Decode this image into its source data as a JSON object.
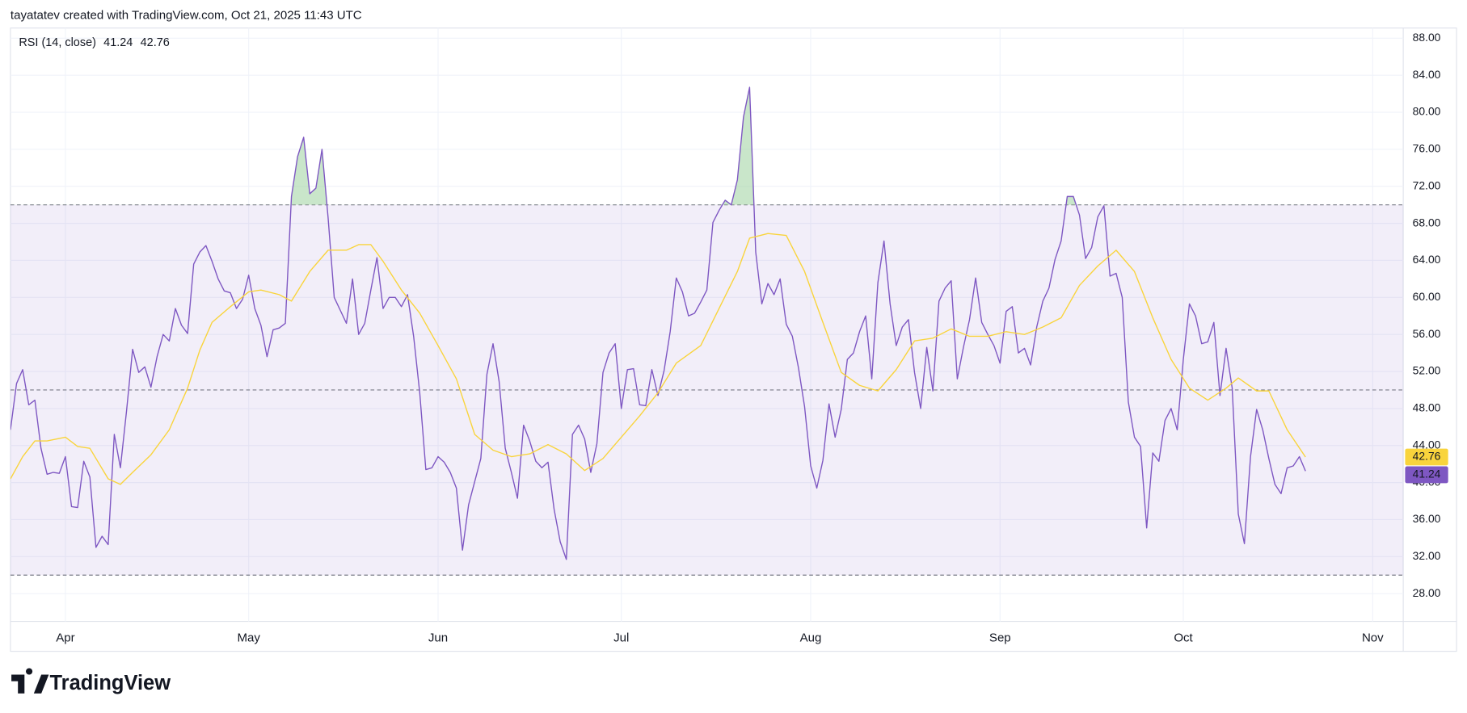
{
  "header": {
    "attribution": "tayatatev created with TradingView.com, Oct 21, 2025 11:43 UTC"
  },
  "footer": {
    "brand": "TradingView"
  },
  "chart_data": {
    "type": "line",
    "legend_title": "RSI (14, close)",
    "xlim": [
      0,
      228
    ],
    "xticks": [
      {
        "value": 9,
        "label": "Apr"
      },
      {
        "value": 39,
        "label": "May"
      },
      {
        "value": 70,
        "label": "Jun"
      },
      {
        "value": 100,
        "label": "Jul"
      },
      {
        "value": 131,
        "label": "Aug"
      },
      {
        "value": 162,
        "label": "Sep"
      },
      {
        "value": 192,
        "label": "Oct"
      },
      {
        "value": 223,
        "label": "Nov"
      }
    ],
    "ylim": [
      25.0,
      89.1
    ],
    "yticks": [
      {
        "value": 28,
        "label": "28.00"
      },
      {
        "value": 32,
        "label": "32.00"
      },
      {
        "value": 36,
        "label": "36.00"
      },
      {
        "value": 40,
        "label": "40.00"
      },
      {
        "value": 44,
        "label": "44.00"
      },
      {
        "value": 48,
        "label": "48.00"
      },
      {
        "value": 52,
        "label": "52.00"
      },
      {
        "value": 56,
        "label": "56.00"
      },
      {
        "value": 60,
        "label": "60.00"
      },
      {
        "value": 64,
        "label": "64.00"
      },
      {
        "value": 68,
        "label": "68.00"
      },
      {
        "value": 72,
        "label": "72.00"
      },
      {
        "value": 76,
        "label": "76.00"
      },
      {
        "value": 80,
        "label": "80.00"
      },
      {
        "value": 84,
        "label": "84.00"
      },
      {
        "value": 88,
        "label": "88.00"
      }
    ],
    "grid": true,
    "bands": {
      "upper": 70,
      "middle": 50,
      "lower": 30,
      "color": "#7e57c2"
    },
    "overbought_fill": "#a5d6a7",
    "series": [
      {
        "color": "#7e57c2",
        "x": [
          0,
          1,
          2,
          3,
          4,
          5,
          6,
          7,
          8,
          9,
          10,
          11,
          12,
          13,
          14,
          15,
          16,
          17,
          18,
          19,
          20,
          21,
          22,
          23,
          24,
          25,
          26,
          27,
          28,
          29,
          30,
          31,
          32,
          33,
          34,
          35,
          36,
          37,
          38,
          39,
          40,
          41,
          42,
          43,
          44,
          45,
          46,
          47,
          48,
          49,
          50,
          51,
          52,
          53,
          54,
          55,
          56,
          57,
          58,
          59,
          60,
          61,
          62,
          63,
          64,
          65,
          66,
          67,
          68,
          69,
          70,
          71,
          72,
          73,
          74,
          75,
          76,
          77,
          78,
          79,
          80,
          81,
          82,
          83,
          84,
          85,
          86,
          87,
          88,
          89,
          90,
          91,
          92,
          93,
          94,
          95,
          96,
          97,
          98,
          99,
          100,
          101,
          102,
          103,
          104,
          105,
          106,
          107,
          108,
          109,
          110,
          111,
          112,
          113,
          114,
          115,
          116,
          117,
          118,
          119,
          120,
          121,
          122,
          123,
          124,
          125,
          126,
          127,
          128,
          129,
          130,
          131,
          132,
          133,
          134,
          135,
          136,
          137,
          138,
          139,
          140,
          141,
          142,
          143,
          144,
          145,
          146,
          147,
          148,
          149,
          150,
          151,
          152,
          153,
          154,
          155,
          156,
          157,
          158,
          159,
          160,
          161,
          162,
          163,
          164,
          165,
          166,
          167,
          168,
          169,
          170,
          171,
          172,
          173,
          174,
          175,
          176,
          177,
          178,
          179,
          180,
          181,
          182,
          183,
          184,
          185,
          186,
          187,
          188,
          189,
          190,
          191,
          192,
          193,
          194,
          195,
          196,
          197,
          198,
          199,
          200,
          201,
          202,
          203,
          204,
          205,
          206,
          207,
          208,
          209,
          210,
          211,
          212
        ],
        "values": [
          45.7,
          50.7,
          52.2,
          48.4,
          48.9,
          43.7,
          40.9,
          41.1,
          41.0,
          42.8,
          37.4,
          37.3,
          42.3,
          40.6,
          33.0,
          34.2,
          33.3,
          45.2,
          41.6,
          47.7,
          54.4,
          51.9,
          52.5,
          50.3,
          53.6,
          56.0,
          55.3,
          58.8,
          57.0,
          56.1,
          63.6,
          64.9,
          65.6,
          63.9,
          62.0,
          60.7,
          60.5,
          58.8,
          59.8,
          62.4,
          58.8,
          57.0,
          53.6,
          56.5,
          56.7,
          57.2,
          70.9,
          75.2,
          77.3,
          71.2,
          71.8,
          76.0,
          68.6,
          60.0,
          58.6,
          57.2,
          62.0,
          56.0,
          57.2,
          60.8,
          64.3,
          58.8,
          60.0,
          60.0,
          59.0,
          60.3,
          55.8,
          49.7,
          41.4,
          41.6,
          42.8,
          42.2,
          41.1,
          39.4,
          32.7,
          37.6,
          40.1,
          42.6,
          51.7,
          55.0,
          50.9,
          43.7,
          41.1,
          38.3,
          46.2,
          44.5,
          42.3,
          41.6,
          42.2,
          37.1,
          33.6,
          31.7,
          45.2,
          46.2,
          44.7,
          41.1,
          44.2,
          51.9,
          54.0,
          55.0,
          48.0,
          52.2,
          52.3,
          48.4,
          48.3,
          52.2,
          49.4,
          52.1,
          56.3,
          62.1,
          60.6,
          58.0,
          58.3,
          59.5,
          60.8,
          68.1,
          69.4,
          70.5,
          70.0,
          72.7,
          79.5,
          82.7,
          64.9,
          59.3,
          61.5,
          60.3,
          62.0,
          57.1,
          55.8,
          52.4,
          48.2,
          41.8,
          39.4,
          42.4,
          48.5,
          44.9,
          47.9,
          53.3,
          54.0,
          56.3,
          58.0,
          51.2,
          61.6,
          66.1,
          59.3,
          54.8,
          56.8,
          57.6,
          51.9,
          48.0,
          54.6,
          49.9,
          59.6,
          61.0,
          61.8,
          51.2,
          54.6,
          57.6,
          62.1,
          57.3,
          56.0,
          54.8,
          52.9,
          58.5,
          59.0,
          54.0,
          54.5,
          52.7,
          56.8,
          59.6,
          61.0,
          64.1,
          66.1,
          70.9,
          70.9,
          68.9,
          64.2,
          65.4,
          68.7,
          69.9,
          62.3,
          62.6,
          60.0,
          48.7,
          44.9,
          43.9,
          35.1,
          43.2,
          42.3,
          46.7,
          48.0,
          45.7,
          53.3,
          59.3,
          58.0,
          55.0,
          55.2,
          57.3,
          49.4,
          54.5,
          50.2,
          36.6,
          33.4,
          42.8,
          47.9,
          45.7,
          42.6,
          39.8,
          38.8,
          41.6,
          41.8,
          42.8,
          41.24
        ]
      },
      {
        "color": "#f9d43c",
        "x": [
          0,
          2,
          4,
          6,
          9,
          11,
          13,
          16,
          18,
          20,
          23,
          26,
          29,
          31,
          33,
          36,
          39,
          41,
          44,
          46,
          49,
          52,
          55,
          57,
          59,
          61,
          64,
          67,
          70,
          73,
          76,
          79,
          82,
          85,
          88,
          91,
          94,
          97,
          100,
          103,
          106,
          109,
          113,
          116,
          119,
          121,
          124,
          127,
          130,
          133,
          136,
          139,
          142,
          145,
          148,
          151,
          154,
          157,
          160,
          163,
          166,
          169,
          172,
          175,
          178,
          181,
          184,
          187,
          190,
          193,
          196,
          199,
          201,
          204,
          206,
          209,
          212
        ],
        "values": [
          40.4,
          42.8,
          44.5,
          44.5,
          44.9,
          43.9,
          43.7,
          40.4,
          39.8,
          41.1,
          43.0,
          45.7,
          50.2,
          54.3,
          57.3,
          59.0,
          60.6,
          60.8,
          60.3,
          59.6,
          62.8,
          65.1,
          65.1,
          65.7,
          65.7,
          63.9,
          60.8,
          58.3,
          54.8,
          51.2,
          45.2,
          43.5,
          42.8,
          43.1,
          44.1,
          43.1,
          41.3,
          42.6,
          44.9,
          47.2,
          49.7,
          52.9,
          54.8,
          58.8,
          62.8,
          66.4,
          66.9,
          66.7,
          62.8,
          57.3,
          51.9,
          50.5,
          49.9,
          52.2,
          55.3,
          55.6,
          56.6,
          55.8,
          55.8,
          56.3,
          56.0,
          56.8,
          57.8,
          61.3,
          63.4,
          65.1,
          62.8,
          57.8,
          53.3,
          50.2,
          48.9,
          50.2,
          51.3,
          49.9,
          49.9,
          45.7,
          42.76
        ]
      }
    ]
  }
}
